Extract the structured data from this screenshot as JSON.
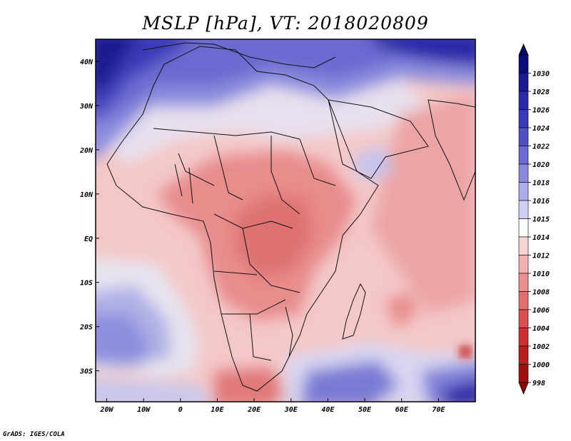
{
  "title": "MSLP [hPa], VT: 2018020809",
  "credit": "GrADS: IGES/COLA",
  "map": {
    "region": "Africa",
    "lon_range": [
      -23,
      80
    ],
    "lat_range": [
      -37,
      45
    ],
    "x_ticks": [
      {
        "lon": -20,
        "label": "20W"
      },
      {
        "lon": -10,
        "label": "10W"
      },
      {
        "lon": 0,
        "label": "0"
      },
      {
        "lon": 10,
        "label": "10E"
      },
      {
        "lon": 20,
        "label": "20E"
      },
      {
        "lon": 30,
        "label": "30E"
      },
      {
        "lon": 40,
        "label": "40E"
      },
      {
        "lon": 50,
        "label": "50E"
      },
      {
        "lon": 60,
        "label": "60E"
      },
      {
        "lon": 70,
        "label": "70E"
      }
    ],
    "y_ticks": [
      {
        "lat": 40,
        "label": "40N"
      },
      {
        "lat": 30,
        "label": "30N"
      },
      {
        "lat": 20,
        "label": "20N"
      },
      {
        "lat": 10,
        "label": "10N"
      },
      {
        "lat": 0,
        "label": "EQ"
      },
      {
        "lat": -10,
        "label": "10S"
      },
      {
        "lat": -20,
        "label": "20S"
      },
      {
        "lat": -30,
        "label": "30S"
      }
    ]
  },
  "colorbar": {
    "levels": [
      {
        "label": "1030",
        "color": "#0c0c7a"
      },
      {
        "label": "1028",
        "color": "#1a1a92"
      },
      {
        "label": "1026",
        "color": "#2a2aa8"
      },
      {
        "label": "1024",
        "color": "#3a3ab8"
      },
      {
        "label": "1022",
        "color": "#5050c4"
      },
      {
        "label": "1020",
        "color": "#6a6ad0"
      },
      {
        "label": "1018",
        "color": "#8a8adc"
      },
      {
        "label": "1016",
        "color": "#acacea"
      },
      {
        "label": "1015",
        "color": "#d0d0f4"
      },
      {
        "label": "1014",
        "color": "#fbfbfb"
      },
      {
        "label": "1012",
        "color": "#f6d4d4"
      },
      {
        "label": "1010",
        "color": "#f0b0b0"
      },
      {
        "label": "1008",
        "color": "#e89090"
      },
      {
        "label": "1006",
        "color": "#e07070"
      },
      {
        "label": "1004",
        "color": "#d85050"
      },
      {
        "label": "1002",
        "color": "#cc3030"
      },
      {
        "label": "1000",
        "color": "#b81e1e"
      },
      {
        "label": "998",
        "color": "#a01010"
      }
    ],
    "top_color": "#0a0a60",
    "bottom_color": "#8c0808"
  }
}
